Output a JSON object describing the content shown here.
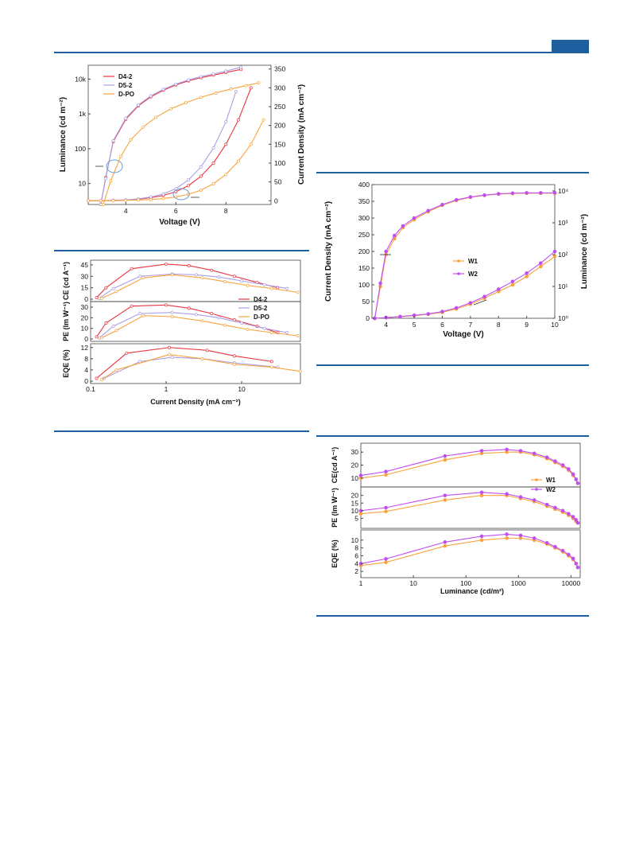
{
  "colors": {
    "rule": "#1f5fa0",
    "D4-2": "#e8353f",
    "D5-2": "#a99ee6",
    "D-PO": "#f7a43c",
    "W1": "#f7a43c",
    "W2": "#c04ff0"
  },
  "chart_data": [
    {
      "id": "fig_a",
      "type": "line",
      "xlabel": "Voltage (V)",
      "ylabel_left": "Luminance (cd m⁻²)",
      "ylabel_right": "Current Density (mA cm⁻²)",
      "x_ticks": [
        "4",
        "6",
        "8"
      ],
      "y_left_ticks": [
        "10",
        "100",
        "1k",
        "10k"
      ],
      "y_left_scale": "log",
      "y_right_ticks": [
        "0",
        "50",
        "100",
        "150",
        "200",
        "250",
        "300",
        "350"
      ],
      "xlim": [
        2.5,
        9.8
      ],
      "ylim_left": [
        2.5,
        25000
      ],
      "ylim_right": [
        -10,
        360
      ],
      "legend": [
        "D4-2",
        "D5-2",
        "D-PO"
      ],
      "series": [
        {
          "name": "D4-2",
          "axis": "left",
          "x": [
            3.0,
            3.2,
            3.5,
            4.0,
            4.5,
            5.0,
            5.5,
            6.0,
            6.5,
            7.0,
            7.5,
            8.0,
            8.6
          ],
          "y": [
            2.5,
            15,
            160,
            700,
            1700,
            3100,
            4800,
            6800,
            8900,
            11000,
            13000,
            15500,
            19000
          ]
        },
        {
          "name": "D5-2",
          "axis": "left",
          "x": [
            3.0,
            3.2,
            3.5,
            4.0,
            4.5,
            5.0,
            5.5,
            6.0,
            6.5,
            7.0,
            7.5,
            8.0,
            8.6
          ],
          "y": [
            2.5,
            14,
            170,
            750,
            1800,
            3300,
            5100,
            7200,
            9400,
            11800,
            14000,
            17000,
            22000
          ]
        },
        {
          "name": "D-PO",
          "axis": "left",
          "x": [
            3.1,
            3.4,
            3.8,
            4.2,
            4.7,
            5.2,
            5.8,
            6.4,
            7.0,
            7.6,
            8.2,
            8.8,
            9.3
          ],
          "y": [
            2.5,
            12,
            60,
            180,
            420,
            800,
            1400,
            2100,
            3000,
            4000,
            5200,
            6500,
            7800
          ]
        },
        {
          "name": "D4-2",
          "axis": "right",
          "x": [
            2.5,
            3.0,
            3.5,
            4.0,
            4.5,
            5.0,
            5.5,
            6.0,
            6.5,
            7.0,
            7.5,
            8.0,
            8.5,
            9.0
          ],
          "y": [
            0,
            0,
            1,
            2,
            4,
            8,
            14,
            24,
            40,
            65,
            100,
            150,
            215,
            300
          ]
        },
        {
          "name": "D5-2",
          "axis": "right",
          "x": [
            2.5,
            3.0,
            3.5,
            4.0,
            4.5,
            5.0,
            5.5,
            6.0,
            6.5,
            7.0,
            7.5,
            8.0,
            8.4
          ],
          "y": [
            0,
            0,
            1,
            2,
            5,
            10,
            18,
            32,
            55,
            90,
            140,
            210,
            290
          ]
        },
        {
          "name": "D-PO",
          "axis": "right",
          "x": [
            2.5,
            3.0,
            3.5,
            4.0,
            4.5,
            5.0,
            5.5,
            6.0,
            6.5,
            7.0,
            7.5,
            8.0,
            8.5,
            9.0,
            9.5
          ],
          "y": [
            0,
            0,
            0,
            1,
            2,
            3,
            6,
            10,
            17,
            28,
            45,
            70,
            105,
            150,
            215
          ]
        }
      ]
    },
    {
      "id": "fig_b",
      "type": "line",
      "xlabel": "Current Density (mA cm⁻²)",
      "x_scale": "log",
      "x_ticks": [
        "0.1",
        "1",
        "10"
      ],
      "xlim": [
        0.1,
        60
      ],
      "legend": [
        "D4-2",
        "D5-2",
        "D-PO"
      ],
      "panels": [
        {
          "ylabel": "CE (cd A⁻¹)",
          "y_ticks": [
            "0",
            "15",
            "30",
            "45"
          ],
          "ylim": [
            0,
            48
          ],
          "series": [
            {
              "name": "D4-2",
              "x": [
                0.12,
                0.16,
                0.35,
                1.0,
                2.0,
                4.0,
                8.0,
                16,
                30
              ],
              "y": [
                2,
                15,
                40,
                46,
                44,
                38,
                30,
                22,
                15
              ]
            },
            {
              "name": "D5-2",
              "x": [
                0.13,
                0.2,
                0.45,
                1.2,
                2.5,
                5,
                10,
                20,
                40
              ],
              "y": [
                1,
                14,
                30,
                33,
                32,
                29,
                24,
                19,
                14
              ]
            },
            {
              "name": "D-PO",
              "x": [
                0.14,
                0.22,
                0.5,
                1.2,
                3,
                6,
                12,
                25,
                55
              ],
              "y": [
                1,
                10,
                28,
                32,
                28,
                23,
                18,
                14,
                9
              ]
            }
          ]
        },
        {
          "ylabel": "PE (lm W⁻¹)",
          "y_ticks": [
            "0",
            "10",
            "20",
            "30"
          ],
          "ylim": [
            0,
            33
          ],
          "series": [
            {
              "name": "D4-2",
              "x": [
                0.12,
                0.16,
                0.35,
                1.0,
                2.0,
                4.0,
                8.0,
                16,
                30
              ],
              "y": [
                2,
                15,
                31,
                32,
                29,
                24,
                18,
                12,
                6
              ]
            },
            {
              "name": "D5-2",
              "x": [
                0.13,
                0.2,
                0.45,
                1.2,
                2.5,
                5,
                10,
                20,
                40
              ],
              "y": [
                1,
                12,
                24,
                25,
                23,
                20,
                15,
                10,
                6
              ]
            },
            {
              "name": "D-PO",
              "x": [
                0.14,
                0.22,
                0.5,
                1.2,
                3,
                6,
                12,
                25,
                55
              ],
              "y": [
                1,
                8,
                22,
                21,
                17,
                13,
                9,
                6,
                3
              ]
            }
          ]
        },
        {
          "ylabel": "EQE (%)",
          "y_ticks": [
            "0",
            "4",
            "8",
            "12"
          ],
          "ylim": [
            0,
            12.5
          ],
          "series": [
            {
              "name": "D4-2",
              "x": [
                0.12,
                0.3,
                1.1,
                3.5,
                8,
                25
              ],
              "y": [
                1,
                10,
                12,
                11,
                9,
                7
              ]
            },
            {
              "name": "D5-2",
              "x": [
                0.15,
                0.45,
                1.2,
                3,
                8,
                30
              ],
              "y": [
                1,
                7,
                8.5,
                8,
                6.5,
                5
              ]
            },
            {
              "name": "D-PO",
              "x": [
                0.14,
                0.22,
                1.1,
                3,
                8,
                25,
                60
              ],
              "y": [
                0.5,
                4,
                9.5,
                8,
                6,
                5,
                3.5
              ]
            }
          ]
        }
      ]
    },
    {
      "id": "fig_c",
      "type": "line",
      "xlabel": "Voltage (V)",
      "ylabel_left": "Current Density (mA cm⁻²)",
      "ylabel_right": "Luminance (cd m⁻²)",
      "x_ticks": [
        "4",
        "5",
        "6",
        "7",
        "8",
        "9",
        "10"
      ],
      "y_left_ticks": [
        "0",
        "50",
        "100",
        "150",
        "200",
        "250",
        "300",
        "350",
        "400"
      ],
      "y_right_ticks": [
        "10⁰",
        "10¹",
        "10²",
        "10³",
        "10⁴"
      ],
      "xlim": [
        3.5,
        10
      ],
      "ylim_left": [
        0,
        400
      ],
      "ylim_right_log": [
        0,
        4.2
      ],
      "legend": [
        "W1",
        "W2"
      ],
      "series": [
        {
          "name": "W1",
          "axis": "left",
          "x": [
            3.6,
            4.0,
            4.5,
            5.0,
            5.5,
            6.0,
            6.5,
            7.0,
            7.5,
            8.0,
            8.5,
            9.0,
            9.5,
            10.0
          ],
          "y": [
            0,
            2,
            5,
            8,
            12,
            18,
            28,
            42,
            60,
            80,
            100,
            125,
            155,
            185
          ]
        },
        {
          "name": "W2",
          "axis": "left",
          "x": [
            3.6,
            4.0,
            4.5,
            5.0,
            5.5,
            6.0,
            6.5,
            7.0,
            7.5,
            8.0,
            8.5,
            9.0,
            9.5,
            10.0
          ],
          "y": [
            0,
            2,
            5,
            9,
            13,
            20,
            31,
            46,
            65,
            87,
            110,
            135,
            165,
            200
          ]
        },
        {
          "name": "W1",
          "axis": "right",
          "x": [
            3.6,
            3.8,
            4.0,
            4.3,
            4.6,
            5.0,
            5.5,
            6.0,
            6.5,
            7.0,
            7.5,
            8.0,
            8.5,
            9.0,
            9.5,
            10.0
          ],
          "y": [
            0,
            1.0,
            2.0,
            2.5,
            2.85,
            3.1,
            3.35,
            3.55,
            3.7,
            3.8,
            3.86,
            3.9,
            3.92,
            3.93,
            3.93,
            3.93
          ]
        },
        {
          "name": "W2",
          "axis": "right",
          "x": [
            3.6,
            3.8,
            4.0,
            4.3,
            4.6,
            5.0,
            5.5,
            6.0,
            6.5,
            7.0,
            7.5,
            8.0,
            8.5,
            9.0,
            9.5,
            10.0
          ],
          "y": [
            0,
            1.1,
            2.1,
            2.6,
            2.9,
            3.15,
            3.38,
            3.57,
            3.72,
            3.81,
            3.87,
            3.91,
            3.93,
            3.94,
            3.94,
            3.94
          ]
        }
      ]
    },
    {
      "id": "fig_d",
      "type": "line",
      "xlabel": "Luminance (cd/m²)",
      "x_scale": "log",
      "x_ticks": [
        "1",
        "10",
        "100",
        "1000",
        "10000"
      ],
      "xlim": [
        1,
        15000
      ],
      "legend": [
        "W1",
        "W2"
      ],
      "panels": [
        {
          "ylabel": "CE(cd A⁻¹)",
          "y_ticks": [
            "10",
            "20",
            "30"
          ],
          "ylim": [
            5,
            35
          ],
          "series": [
            {
              "name": "W1",
              "x": [
                1,
                3,
                40,
                200,
                600,
                1100,
                2000,
                3500,
                5000,
                7000,
                9000,
                11000,
                12500,
                13500
              ],
              "y": [
                10,
                12.5,
                24,
                29,
                30,
                30,
                28,
                25,
                22,
                19,
                16,
                12,
                9,
                6
              ]
            },
            {
              "name": "W2",
              "x": [
                1,
                3,
                40,
                200,
                600,
                1100,
                2000,
                3500,
                5000,
                7000,
                9000,
                11000,
                12500,
                13500
              ],
              "y": [
                12,
                15,
                27,
                31,
                32,
                31,
                29,
                26,
                23,
                20,
                17,
                13,
                9,
                6
              ]
            }
          ]
        },
        {
          "ylabel": "PE (lm W⁻¹)",
          "y_ticks": [
            "5",
            "10",
            "15",
            "20"
          ],
          "ylim": [
            0,
            24
          ],
          "series": [
            {
              "name": "W1",
              "x": [
                1,
                3,
                40,
                200,
                600,
                1100,
                2000,
                3500,
                5000,
                7000,
                9000,
                11000,
                12500,
                13500
              ],
              "y": [
                8,
                9.5,
                17,
                20,
                20,
                18,
                16,
                13,
                11,
                9,
                7,
                5,
                3,
                2
              ]
            },
            {
              "name": "W2",
              "x": [
                1,
                3,
                40,
                200,
                600,
                1100,
                2000,
                3500,
                5000,
                7000,
                9000,
                11000,
                12500,
                13500
              ],
              "y": [
                10,
                12,
                20,
                22,
                21,
                19,
                17,
                14,
                12,
                10,
                8,
                6,
                4,
                2
              ]
            }
          ]
        },
        {
          "ylabel": "EQE (%)",
          "y_ticks": [
            "2",
            "4",
            "6",
            "8",
            "10"
          ],
          "ylim": [
            1,
            12
          ],
          "series": [
            {
              "name": "W1",
              "x": [
                1,
                3,
                40,
                200,
                600,
                1100,
                2000,
                3500,
                5000,
                7000,
                9000,
                11000,
                12500,
                13500
              ],
              "y": [
                3.5,
                4.3,
                8.5,
                10,
                10.5,
                10.5,
                10,
                9,
                8,
                7,
                6,
                5,
                4,
                3
              ]
            },
            {
              "name": "W2",
              "x": [
                1,
                3,
                40,
                200,
                600,
                1100,
                2000,
                3500,
                5000,
                7000,
                9000,
                11000,
                12500,
                13500
              ],
              "y": [
                4,
                5.2,
                9.5,
                11,
                11.5,
                11.2,
                10.5,
                9.3,
                8.3,
                7.3,
                6.3,
                5.3,
                4,
                3
              ]
            }
          ]
        }
      ]
    }
  ]
}
